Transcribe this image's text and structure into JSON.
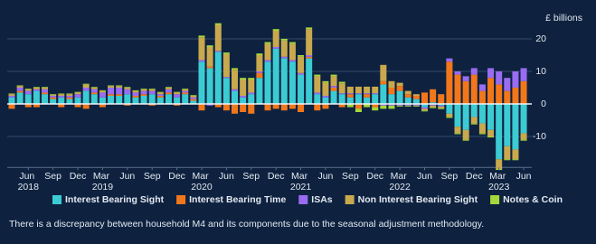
{
  "chart_data": {
    "type": "stacked_bar",
    "y_label": "£ billions",
    "footnote": "There is a discrepancy between household M4 and its components due to the seasonal adjustment methodology.",
    "categories": [
      null,
      null,
      "Jun 2018",
      null,
      null,
      "Sep",
      null,
      null,
      "Dec",
      null,
      null,
      "Mar 2019",
      null,
      null,
      "Jun",
      null,
      null,
      "Sep",
      null,
      null,
      "Dec",
      null,
      null,
      "Mar 2020",
      null,
      null,
      "Jun",
      null,
      null,
      "Sep",
      null,
      null,
      "Dec",
      null,
      null,
      "Mar 2021",
      null,
      null,
      "Jun",
      null,
      null,
      "Sep",
      null,
      null,
      "Dec",
      null,
      null,
      "Mar 2022",
      null,
      null,
      "Jun",
      null,
      null,
      "Sep",
      null,
      null,
      "Dec",
      null,
      null,
      "Mar 2023",
      null,
      null,
      "Jun"
    ],
    "ylim": [
      -19.5,
      23.5
    ],
    "yticks": [
      -10,
      0,
      10,
      20
    ],
    "grid": true,
    "series": [
      {
        "name": "Interest Bearing Sight",
        "color": "#3ccbd3",
        "values": [
          2,
          3.5,
          3,
          4,
          3,
          1.5,
          2,
          1.5,
          2,
          4,
          3,
          2,
          2.5,
          2.5,
          3,
          2,
          2.5,
          3,
          2,
          3,
          2,
          3,
          1,
          13,
          11,
          16,
          8,
          4,
          2,
          3,
          8,
          13,
          17,
          14,
          13,
          9,
          14,
          3,
          2,
          4,
          3,
          2,
          3,
          2,
          3,
          6,
          3,
          4,
          2,
          1.5,
          -1,
          0.5,
          -0.5,
          -3,
          -7,
          -8,
          -4,
          -6,
          -8,
          -17,
          -13,
          -14,
          -9
        ]
      },
      {
        "name": "Interest Bearing Time",
        "color": "#f2771a",
        "values": [
          -1.5,
          0.5,
          -1,
          -1,
          0.5,
          0.5,
          -1,
          0.5,
          -1,
          -1.5,
          0.5,
          -1,
          0.5,
          0.5,
          -0.5,
          0.5,
          0.5,
          -0.5,
          0.5,
          0.5,
          -0.5,
          0.5,
          0.5,
          -2,
          0.5,
          -1,
          -2,
          -3,
          -2.5,
          -3,
          1.5,
          -2,
          -1.5,
          -2,
          -1.5,
          -2.5,
          0.5,
          -2,
          -1.5,
          1,
          -1,
          1,
          -1.5,
          1,
          -1,
          1,
          2,
          1.5,
          1,
          1,
          3.5,
          4,
          3,
          13,
          9,
          7,
          9,
          4,
          8,
          6,
          4,
          5,
          7
        ]
      },
      {
        "name": "ISAs",
        "color": "#9a6cf2",
        "values": [
          0.5,
          1,
          1,
          0.5,
          1,
          0.5,
          0.5,
          0.5,
          1,
          1,
          1,
          1.5,
          2,
          2,
          1.5,
          1,
          1,
          1,
          0.5,
          1,
          1,
          0.5,
          0.5,
          0.5,
          -0.5,
          0.3,
          0.3,
          0.5,
          0.5,
          0.5,
          0.5,
          0.5,
          0.5,
          0.5,
          0.5,
          0.5,
          0.5,
          0.5,
          0.5,
          0.5,
          0.3,
          0.3,
          0.3,
          0.3,
          0.3,
          -0.5,
          -0.5,
          -0.5,
          -0.5,
          -0.5,
          -0.5,
          -0.5,
          -0.3,
          1,
          1,
          1.5,
          2,
          2,
          3,
          4,
          4,
          5,
          4
        ]
      },
      {
        "name": "Non Interest Bearing Sight",
        "color": "#c9a94e",
        "values": [
          0.5,
          0.5,
          0.5,
          0.5,
          0.5,
          0.3,
          0.5,
          0.5,
          0.5,
          1,
          0.5,
          0.5,
          0.5,
          0.5,
          0.5,
          0.5,
          0.5,
          0.5,
          0.5,
          0.5,
          0.5,
          0.5,
          0.5,
          7,
          6,
          8,
          7,
          6,
          5,
          4,
          5,
          5,
          5,
          5,
          5,
          5,
          8,
          5,
          4,
          3,
          3,
          2,
          2,
          2,
          2,
          5,
          2,
          1,
          1,
          0.5,
          -0.5,
          -0.5,
          -0.5,
          -1,
          -2,
          -3,
          -2,
          -3,
          -2,
          -3,
          -4,
          -3,
          -2
        ]
      },
      {
        "name": "Notes & Coin",
        "color": "#a6d83b",
        "values": [
          0.2,
          0.2,
          0.2,
          0.2,
          0.2,
          0.2,
          0.2,
          0.2,
          0.2,
          0.2,
          0.2,
          0.2,
          0.2,
          0.2,
          0.2,
          0.2,
          0.2,
          0.2,
          0.2,
          0.2,
          0.2,
          0.2,
          0.2,
          0.5,
          0.5,
          0.5,
          0.5,
          0.5,
          0.5,
          0.5,
          0.5,
          0.5,
          0.5,
          0.5,
          0.5,
          0.5,
          0.5,
          0.5,
          0.5,
          0.5,
          0.5,
          -1,
          -1,
          -1,
          -1,
          -1,
          -1,
          -0.3,
          -0.3,
          -0.3,
          -0.3,
          -0.3,
          -0.3,
          -0.3,
          -0.3,
          -0.3,
          -0.3,
          -0.3,
          -0.3,
          -0.3,
          -0.3,
          -0.3,
          -0.3
        ]
      }
    ]
  }
}
